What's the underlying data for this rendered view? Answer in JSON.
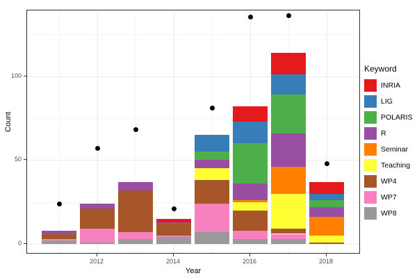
{
  "chart_data": {
    "type": "bar",
    "subtype": "stacked-bars-with-scatter-points",
    "title": "",
    "xlabel": "Year",
    "ylabel": "Count",
    "categories": [
      2011,
      2012,
      2013,
      2014,
      2015,
      2016,
      2017,
      2018
    ],
    "x_tick_labels": [
      "2012",
      "2014",
      "2016",
      "2018"
    ],
    "x_ticks_at_categories": [
      2012,
      2014,
      2016,
      2018
    ],
    "y_ticks": [
      0,
      50,
      100
    ],
    "y_minor_gridlines": [
      25,
      75,
      125
    ],
    "ylim": [
      0,
      139
    ],
    "grid": true,
    "panel_border_color": "#2e2e2e",
    "grid_major_color": "#ebebeb",
    "grid_minor_color": "#f4f4f4",
    "legend": {
      "title": "Keyword",
      "position": "right"
    },
    "series": [
      {
        "name": "INRIA",
        "color": "#E41A1C",
        "values": [
          0,
          0,
          0,
          2,
          0,
          9,
          13,
          7
        ]
      },
      {
        "name": "LIG",
        "color": "#377EB8",
        "values": [
          0,
          0,
          0,
          0,
          10,
          13,
          12,
          4
        ]
      },
      {
        "name": "POLARIS",
        "color": "#4DAF4A",
        "values": [
          0,
          0,
          0,
          0,
          5,
          24,
          23,
          4
        ]
      },
      {
        "name": "R",
        "color": "#984EA3",
        "values": [
          2,
          3,
          5,
          1,
          5,
          10,
          20,
          6
        ]
      },
      {
        "name": "Seminar",
        "color": "#FF7F00",
        "values": [
          0,
          0,
          0,
          0,
          0,
          1,
          16,
          11
        ]
      },
      {
        "name": "Teaching",
        "color": "#FFFF33",
        "values": [
          0,
          0,
          0,
          0,
          7,
          5,
          21,
          4
        ]
      },
      {
        "name": "WP4",
        "color": "#A65628",
        "values": [
          3,
          12,
          25,
          7,
          14,
          12,
          3,
          1
        ]
      },
      {
        "name": "WP7",
        "color": "#F781BF",
        "values": [
          1,
          8,
          4,
          1,
          17,
          5,
          3,
          0
        ]
      },
      {
        "name": "WP8",
        "color": "#999999",
        "values": [
          2,
          1,
          3,
          4,
          7,
          3,
          3,
          0
        ]
      }
    ],
    "stack_order_bottom_to_top": [
      "WP8",
      "WP7",
      "WP4",
      "Teaching",
      "Seminar",
      "R",
      "POLARIS",
      "LIG",
      "INRIA"
    ],
    "bar_totals": [
      8,
      24,
      37,
      15,
      65,
      82,
      114,
      37
    ],
    "scatter_points": {
      "color": "#000000",
      "values": [
        24,
        57,
        68,
        21,
        81,
        135,
        136,
        48
      ]
    }
  }
}
